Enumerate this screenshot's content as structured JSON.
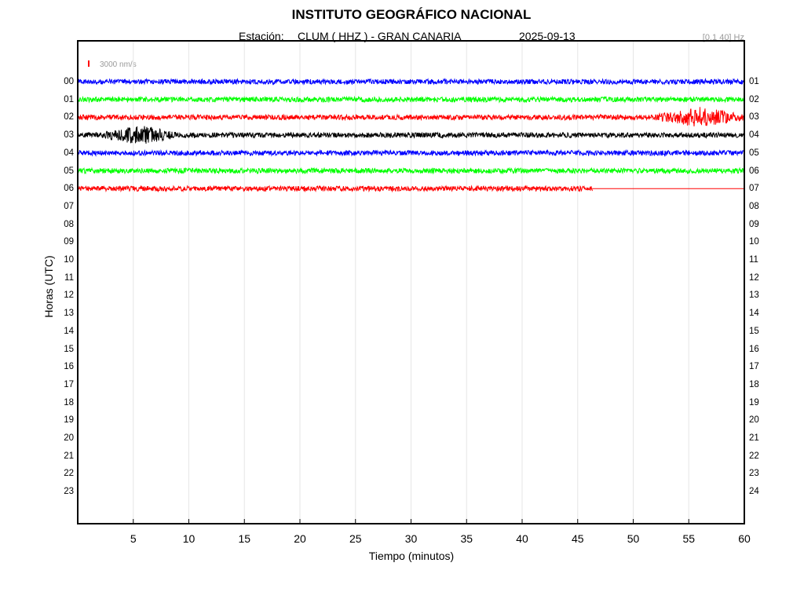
{
  "header": {
    "title": "INSTITUTO GEOGRÁFICO NACIONAL",
    "station_prefix": "Estación:",
    "station": "CLUM ( HHZ ) - GRAN CANARIA",
    "date": "2025-09-13",
    "filter": "[0.1 40] Hz"
  },
  "scale": {
    "label": "3000 nm/s",
    "color": "#ff0000"
  },
  "chart_data": {
    "type": "line",
    "xlabel": "Tiempo (minutos)",
    "ylabel": "Horas (UTC)",
    "xlim": [
      0,
      60
    ],
    "x_ticks": [
      5,
      10,
      15,
      20,
      25,
      30,
      35,
      40,
      45,
      50,
      55,
      60
    ],
    "grid": "vertical",
    "hours_left": [
      "00",
      "01",
      "02",
      "03",
      "04",
      "05",
      "06",
      "07",
      "08",
      "09",
      "10",
      "11",
      "12",
      "13",
      "14",
      "15",
      "16",
      "17",
      "18",
      "19",
      "20",
      "21",
      "22",
      "23"
    ],
    "hours_right": [
      "01",
      "02",
      "03",
      "04",
      "05",
      "06",
      "07",
      "08",
      "09",
      "10",
      "11",
      "12",
      "13",
      "14",
      "15",
      "16",
      "17",
      "18",
      "19",
      "20",
      "21",
      "22",
      "23",
      "24"
    ],
    "series": [
      {
        "hour": "00",
        "color": "#0000ff",
        "end_minute": 60,
        "amplitude": "low"
      },
      {
        "hour": "01",
        "color": "#00ff00",
        "end_minute": 60,
        "amplitude": "low"
      },
      {
        "hour": "02",
        "color": "#ff0000",
        "end_minute": 60,
        "amplitude": "low",
        "event": {
          "start_minute": 51.5,
          "end_minute": 60,
          "peak_minute": 56
        }
      },
      {
        "hour": "03",
        "color": "#000000",
        "end_minute": 60,
        "amplitude": "low",
        "event": {
          "start_minute": 2,
          "end_minute": 9,
          "peak_minute": 5.5
        }
      },
      {
        "hour": "04",
        "color": "#0000ff",
        "end_minute": 60,
        "amplitude": "low"
      },
      {
        "hour": "05",
        "color": "#00ff00",
        "end_minute": 60,
        "amplitude": "low"
      },
      {
        "hour": "06",
        "color": "#ff0000",
        "end_minute": 46.3,
        "amplitude": "low"
      }
    ],
    "colors": [
      "#0000ff",
      "#00ff00",
      "#ff0000",
      "#000000"
    ]
  }
}
